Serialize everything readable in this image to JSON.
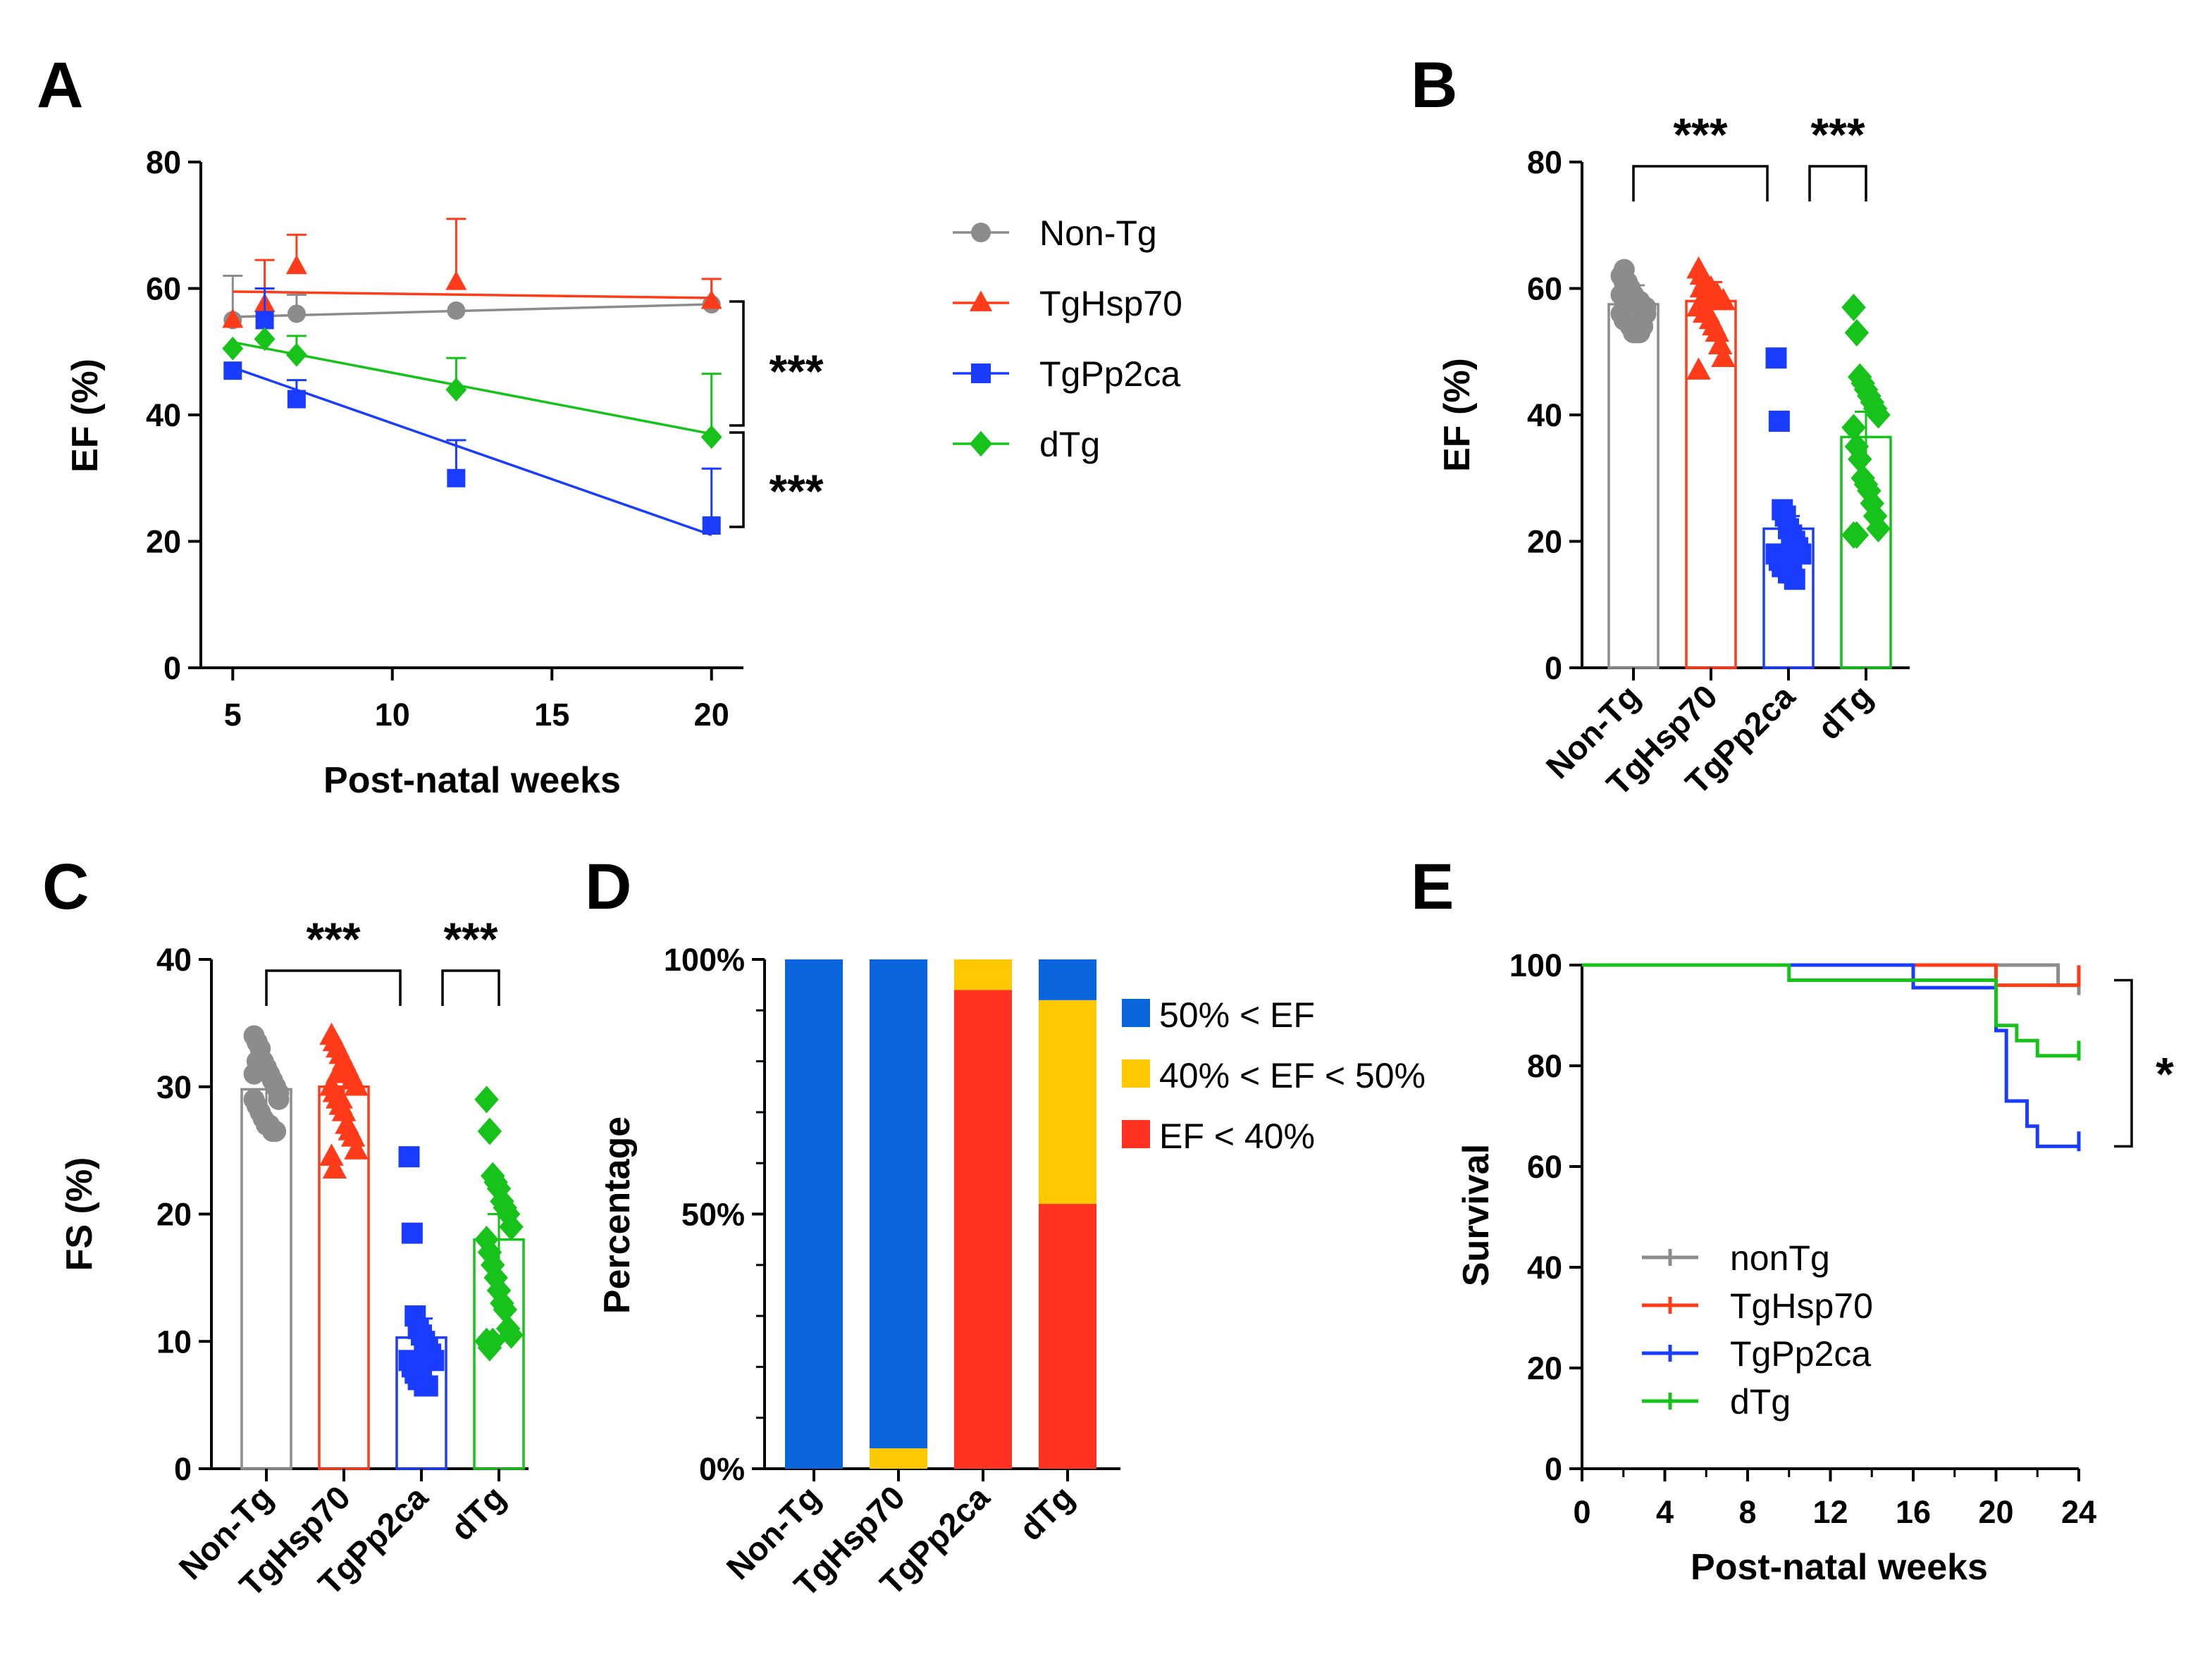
{
  "panel_labels": [
    "A",
    "B",
    "C",
    "D",
    "E"
  ],
  "colors": {
    "Non-Tg": "#8c8c8c",
    "TgHsp70": "#ff3b1a",
    "TgPp2ca": "#1a3cff",
    "dTg": "#17c21a",
    "ef_high": "#0a64dc",
    "ef_mid": "#ffc800",
    "ef_low": "#ff3222"
  },
  "chart_data": [
    {
      "id": "A",
      "type": "line",
      "xlabel": "Post-natal weeks",
      "ylabel": "EF (%)",
      "xlim": [
        4,
        21
      ],
      "ylim": [
        0,
        80
      ],
      "xticks": [
        5,
        10,
        15,
        20
      ],
      "yticks": [
        0,
        20,
        40,
        60,
        80
      ],
      "legend": [
        "Non-Tg",
        "TgHsp70",
        "TgPp2ca",
        "dTg"
      ],
      "series": [
        {
          "name": "Non-Tg",
          "marker": "circle",
          "points": [
            {
              "x": 5,
              "y": 55,
              "err": 7
            },
            {
              "x": 6,
              "y": 55.5,
              "err": 4
            },
            {
              "x": 7,
              "y": 56,
              "err": 3
            },
            {
              "x": 12,
              "y": 56.5,
              "err": 0
            },
            {
              "x": 20,
              "y": 57.5,
              "err": 4
            }
          ],
          "fit": [
            {
              "x": 5,
              "y": 55.5
            },
            {
              "x": 20,
              "y": 57.5
            }
          ]
        },
        {
          "name": "TgHsp70",
          "marker": "triangle",
          "points": [
            {
              "x": 5,
              "y": 55,
              "err": 0
            },
            {
              "x": 6,
              "y": 57.5,
              "err": 7
            },
            {
              "x": 7,
              "y": 63.5,
              "err": 5
            },
            {
              "x": 12,
              "y": 61,
              "err": 10
            },
            {
              "x": 20,
              "y": 58,
              "err": 3.5
            }
          ],
          "fit": [
            {
              "x": 5,
              "y": 59.5
            },
            {
              "x": 20,
              "y": 58.5
            }
          ]
        },
        {
          "name": "TgPp2ca",
          "marker": "square",
          "points": [
            {
              "x": 5,
              "y": 47,
              "err": 0
            },
            {
              "x": 6,
              "y": 55,
              "err": 5
            },
            {
              "x": 7,
              "y": 42.5,
              "err": 3
            },
            {
              "x": 12,
              "y": 30,
              "err": 6
            },
            {
              "x": 20,
              "y": 22.5,
              "err": 9
            }
          ],
          "fit": [
            {
              "x": 5,
              "y": 47.5
            },
            {
              "x": 20,
              "y": 21
            }
          ]
        },
        {
          "name": "dTg",
          "marker": "diamond",
          "points": [
            {
              "x": 5,
              "y": 50.5,
              "err": 0
            },
            {
              "x": 6,
              "y": 52,
              "err": 0
            },
            {
              "x": 7,
              "y": 49.5,
              "err": 3
            },
            {
              "x": 12,
              "y": 44,
              "err": 5
            },
            {
              "x": 20,
              "y": 36.5,
              "err": 10
            }
          ],
          "fit": [
            {
              "x": 5,
              "y": 51.5
            },
            {
              "x": 20,
              "y": 37
            }
          ]
        }
      ],
      "annotations": [
        {
          "text": "***",
          "between": [
            "Non-Tg",
            "dTg"
          ],
          "y_from": 57.5,
          "y_to": 36.5
        },
        {
          "text": "***",
          "between": [
            "dTg",
            "TgPp2ca"
          ],
          "y_from": 36.5,
          "y_to": 22.5
        }
      ]
    },
    {
      "id": "B",
      "type": "bar",
      "ylabel": "EF (%)",
      "ylim": [
        0,
        80
      ],
      "yticks": [
        0,
        20,
        40,
        60,
        80
      ],
      "categories": [
        "Non-Tg",
        "TgHsp70",
        "TgPp2ca",
        "dTg"
      ],
      "values": [
        57.5,
        58,
        22,
        36.5
      ],
      "errors": [
        3,
        3,
        2,
        4
      ],
      "points": [
        [
          62,
          63,
          61,
          60,
          59,
          58,
          58,
          57,
          56,
          56,
          55,
          55,
          54,
          53,
          53,
          53,
          54,
          57,
          59,
          61
        ],
        [
          63,
          62,
          61,
          60,
          60,
          59,
          59,
          58,
          58,
          57,
          57,
          56,
          56,
          55,
          54,
          53,
          51,
          49,
          47,
          60,
          58
        ],
        [
          49,
          39,
          25,
          24,
          22,
          21,
          20,
          19,
          18,
          18,
          17,
          16,
          16,
          15,
          15,
          14
        ],
        [
          57,
          53,
          46,
          45,
          44,
          43,
          42,
          41,
          40,
          38,
          35,
          33,
          30,
          29,
          28,
          26,
          24,
          22,
          21,
          21
        ]
      ],
      "annotations": [
        {
          "text": "***",
          "from": "Non-Tg",
          "to": "TgPp2ca"
        },
        {
          "text": "***",
          "from": "TgPp2ca",
          "to": "dTg"
        }
      ]
    },
    {
      "id": "C",
      "type": "bar",
      "ylabel": "FS (%)",
      "ylim": [
        0,
        40
      ],
      "yticks": [
        0,
        10,
        20,
        30,
        40
      ],
      "categories": [
        "Non-Tg",
        "TgHsp70",
        "TgPp2ca",
        "dTg"
      ],
      "values": [
        29.8,
        30,
        10.3,
        18
      ],
      "errors": [
        1.5,
        1.2,
        1.5,
        2
      ],
      "points": [
        [
          34,
          33.5,
          33,
          32,
          31.5,
          31,
          30.5,
          30,
          29.5,
          29,
          28.5,
          28,
          27.5,
          27,
          27,
          26.5,
          26.5,
          29,
          31,
          32
        ],
        [
          34,
          33.5,
          33,
          32.5,
          32,
          31.5,
          31,
          30.5,
          30,
          30,
          29.5,
          29,
          28.5,
          28,
          27,
          26.5,
          26,
          25,
          24.5,
          23.5,
          31,
          29
        ],
        [
          24.5,
          18.5,
          12,
          11,
          10.5,
          10,
          9.5,
          9,
          8.5,
          8.5,
          8,
          7.5,
          7,
          7,
          6.5,
          6.5
        ],
        [
          29,
          26.5,
          23,
          22.5,
          22,
          21,
          20.5,
          20,
          19,
          18,
          17,
          16,
          15,
          14,
          13,
          12.5,
          11,
          10.5,
          10,
          9.5,
          10
        ]
      ],
      "annotations": [
        {
          "text": "***",
          "from": "Non-Tg",
          "to": "TgPp2ca"
        },
        {
          "text": "***",
          "from": "TgPp2ca",
          "to": "dTg"
        }
      ]
    },
    {
      "id": "D",
      "type": "bar",
      "stacked": true,
      "ylabel": "Percentage",
      "ytick_labels": [
        "0%",
        "50%",
        "100%"
      ],
      "categories": [
        "Non-Tg",
        "TgHsp70",
        "TgPp2ca",
        "dTg"
      ],
      "series": [
        {
          "name": "EF < 40%",
          "color_key": "ef_low",
          "values": [
            0,
            0,
            94,
            52
          ]
        },
        {
          "name": "40% < EF < 50%",
          "color_key": "ef_mid",
          "values": [
            0,
            4,
            6,
            40
          ]
        },
        {
          "name": "50% < EF",
          "color_key": "ef_high",
          "values": [
            100,
            96,
            0,
            8
          ]
        }
      ],
      "legend": [
        "50% < EF",
        "40% < EF < 50%",
        "EF < 40%"
      ]
    },
    {
      "id": "E",
      "type": "line",
      "step": true,
      "xlabel": "Post-natal weeks",
      "ylabel": "Survival",
      "xlim": [
        0,
        24
      ],
      "ylim": [
        0,
        100
      ],
      "xticks": [
        0,
        4,
        8,
        12,
        16,
        20,
        24
      ],
      "yticks": [
        0,
        20,
        40,
        60,
        80,
        100
      ],
      "legend": [
        "nonTg",
        "TgHsp70",
        "TgPp2ca",
        "dTg"
      ],
      "series": [
        {
          "name": "nonTg",
          "color_key": "Non-Tg",
          "x": [
            0,
            23,
            24
          ],
          "y": [
            100,
            96,
            96
          ]
        },
        {
          "name": "TgHsp70",
          "color_key": "TgHsp70",
          "x": [
            0,
            20,
            24
          ],
          "y": [
            100,
            96,
            98
          ]
        },
        {
          "name": "TgPp2ca",
          "color_key": "TgPp2ca",
          "x": [
            0,
            16,
            20,
            20.5,
            21.5,
            22,
            24
          ],
          "y": [
            100,
            95.5,
            87,
            73,
            68,
            64,
            65
          ]
        },
        {
          "name": "dTg",
          "color_key": "dTg",
          "x": [
            0,
            10,
            20,
            21,
            22,
            24
          ],
          "y": [
            100,
            97,
            88,
            85,
            82,
            83
          ]
        }
      ],
      "annotations": [
        {
          "text": "*",
          "y_from": 97,
          "y_to": 64
        }
      ]
    }
  ]
}
